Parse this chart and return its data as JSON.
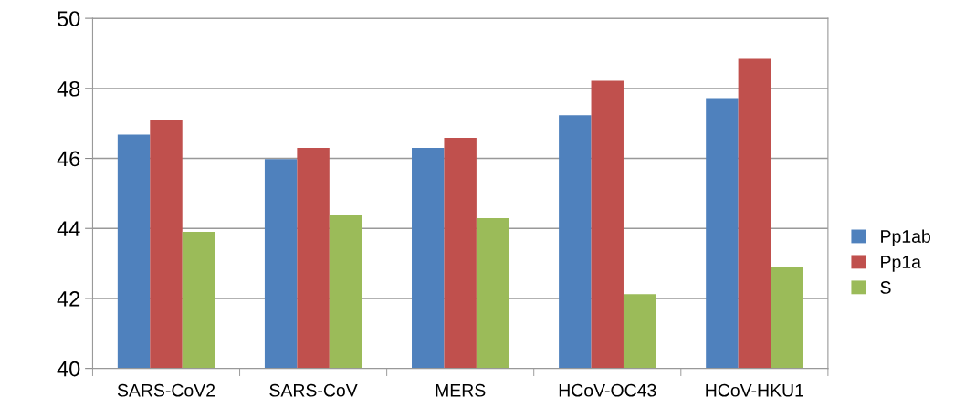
{
  "chart_data": {
    "type": "bar",
    "categories": [
      "SARS-CoV2",
      "SARS-CoV",
      "MERS",
      "HCoV-OC43",
      "HCoV-HKU1"
    ],
    "series": [
      {
        "name": "Pp1ab",
        "color": "#4f81bd",
        "values": [
          46.68,
          45.98,
          46.3,
          47.23,
          47.72
        ]
      },
      {
        "name": "Pp1a",
        "color": "#c0504d",
        "values": [
          47.09,
          46.3,
          46.59,
          48.22,
          48.84
        ]
      },
      {
        "name": "S",
        "color": "#9bbb59",
        "values": [
          43.9,
          44.37,
          44.29,
          42.12,
          42.89
        ]
      }
    ],
    "ylim": [
      40,
      50
    ],
    "yticks": [
      40,
      42,
      44,
      46,
      48,
      50
    ],
    "grid": "y",
    "legend": "right"
  }
}
